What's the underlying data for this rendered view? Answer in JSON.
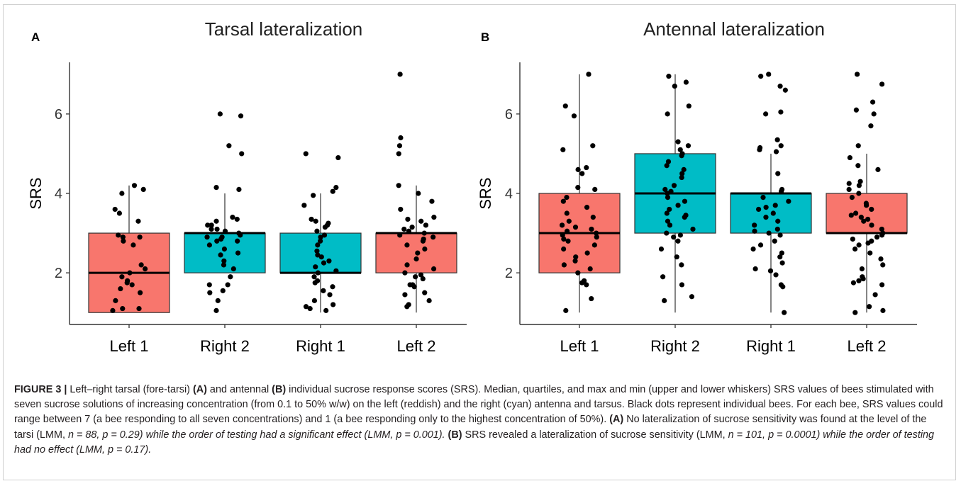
{
  "palette": {
    "left": "#f8766d",
    "right": "#00bcc6",
    "dot": "#000000",
    "axis": "#333333"
  },
  "chart_data": [
    {
      "panel": "A",
      "title": "Tarsal lateralization",
      "type": "box",
      "ylabel": "SRS",
      "ylim": [
        0.7,
        7.3
      ],
      "yticks": [
        2,
        4,
        6
      ],
      "categories": [
        "Left 1",
        "Right 2",
        "Right 1",
        "Left 2"
      ],
      "sides": [
        "left",
        "right",
        "right",
        "left"
      ],
      "boxes": [
        {
          "min": 1,
          "q1": 1,
          "median": 2,
          "q3": 3,
          "max": 4.2
        },
        {
          "min": 2,
          "q1": 2,
          "median": 3,
          "q3": 3,
          "max": 4
        },
        {
          "min": 1,
          "q1": 2,
          "median": 2,
          "q3": 3,
          "max": 4
        },
        {
          "min": 1,
          "q1": 2,
          "median": 3,
          "q3": 3,
          "max": 4.2
        }
      ],
      "points": [
        [
          4.2,
          4.1,
          4.0,
          3.6,
          3.5,
          3.3,
          2.95,
          2.9,
          2.9,
          2.8,
          2.7,
          2.2,
          2.1,
          2.0,
          1.9,
          1.8,
          1.75,
          1.7,
          1.6,
          1.5,
          1.3,
          1.1,
          1.05,
          1.1
        ],
        [
          6.0,
          5.95,
          5.2,
          5.0,
          4.15,
          4.1,
          3.4,
          3.35,
          3.3,
          3.2,
          3.2,
          3.1,
          3.1,
          3.05,
          3.0,
          2.95,
          2.9,
          2.9,
          2.85,
          2.8,
          2.8,
          2.7,
          2.6,
          2.5,
          2.45,
          2.3,
          2.2,
          2.1,
          1.9,
          1.7,
          1.7,
          1.55,
          1.5,
          1.3,
          1.05
        ],
        [
          5.0,
          4.9,
          4.15,
          4.05,
          3.95,
          3.7,
          3.35,
          3.3,
          3.25,
          3.2,
          3.15,
          3.05,
          2.95,
          2.9,
          2.8,
          2.7,
          2.55,
          2.45,
          2.4,
          2.3,
          2.25,
          2.15,
          2.05,
          2.0,
          1.9,
          1.8,
          1.75,
          1.65,
          1.55,
          1.45,
          1.3,
          1.2,
          1.15,
          1.1,
          1.05
        ],
        [
          7.0,
          5.4,
          5.2,
          5.0,
          4.2,
          4.0,
          3.8,
          3.6,
          3.4,
          3.35,
          3.3,
          3.2,
          3.15,
          3.1,
          3.05,
          3.0,
          2.95,
          2.9,
          2.85,
          2.8,
          2.7,
          2.6,
          2.5,
          2.35,
          2.2,
          2.1,
          2.0,
          1.95,
          1.9,
          1.85,
          1.7,
          1.7,
          1.65,
          1.5,
          1.45,
          1.3,
          1.2,
          1.15
        ]
      ]
    },
    {
      "panel": "B",
      "title": "Antennal lateralization",
      "type": "box",
      "ylabel": "SRS",
      "ylim": [
        0.7,
        7.3
      ],
      "yticks": [
        2,
        4,
        6
      ],
      "categories": [
        "Left 1",
        "Right 2",
        "Right 1",
        "Left 2"
      ],
      "sides": [
        "left",
        "right",
        "right",
        "left"
      ],
      "boxes": [
        {
          "min": 1,
          "q1": 2,
          "median": 3,
          "q3": 4,
          "max": 7
        },
        {
          "min": 1,
          "q1": 3,
          "median": 4,
          "q3": 5,
          "max": 7
        },
        {
          "min": 1,
          "q1": 3,
          "median": 4,
          "q3": 4,
          "max": 5
        },
        {
          "min": 1,
          "q1": 3,
          "median": 3,
          "q3": 4,
          "max": 5
        }
      ],
      "points": [
        [
          7.0,
          6.2,
          5.95,
          5.2,
          5.1,
          4.65,
          4.6,
          4.5,
          4.15,
          4.1,
          3.9,
          3.8,
          3.65,
          3.5,
          3.4,
          3.3,
          3.2,
          3.15,
          3.1,
          3.05,
          3.0,
          2.95,
          2.9,
          2.85,
          2.8,
          2.7,
          2.6,
          2.5,
          2.4,
          2.3,
          2.2,
          2.1,
          2.0,
          1.8,
          1.75,
          1.7,
          1.35,
          1.05
        ],
        [
          6.95,
          6.8,
          6.7,
          6.2,
          6.0,
          5.3,
          5.2,
          5.1,
          5.0,
          4.95,
          4.8,
          4.7,
          4.6,
          4.5,
          4.4,
          4.2,
          4.1,
          4.05,
          4.0,
          3.9,
          3.8,
          3.7,
          3.6,
          3.5,
          3.45,
          3.4,
          3.3,
          3.2,
          3.1,
          3.0,
          2.95,
          2.9,
          2.8,
          2.6,
          2.4,
          2.2,
          1.9,
          1.7,
          1.4,
          1.3
        ],
        [
          7.0,
          6.95,
          6.7,
          6.6,
          6.05,
          6.0,
          5.35,
          5.2,
          5.15,
          5.1,
          5.05,
          4.5,
          4.1,
          4.05,
          3.9,
          3.8,
          3.7,
          3.65,
          3.6,
          3.5,
          3.4,
          3.3,
          3.2,
          3.1,
          3.05,
          3.0,
          2.95,
          2.8,
          2.7,
          2.6,
          2.5,
          2.4,
          2.25,
          2.1,
          2.05,
          1.95,
          1.7,
          1.65,
          1.0
        ],
        [
          7.0,
          6.75,
          6.3,
          6.1,
          6.0,
          5.7,
          5.2,
          4.9,
          4.7,
          4.6,
          4.3,
          4.25,
          4.2,
          4.1,
          4.0,
          3.9,
          3.75,
          3.7,
          3.6,
          3.5,
          3.45,
          3.4,
          3.35,
          3.3,
          3.2,
          3.1,
          3.0,
          2.95,
          2.9,
          2.85,
          2.8,
          2.75,
          2.7,
          2.6,
          2.5,
          2.35,
          2.2,
          2.1,
          1.9,
          1.85,
          1.8,
          1.75,
          1.7,
          1.45,
          1.15,
          1.05,
          1.0
        ]
      ]
    }
  ],
  "caption": {
    "figure_label": "FIGURE 3 |",
    "text_1": " Left–right tarsal (fore-tarsi) ",
    "ref_a_1": "(A)",
    "text_2": " and antennal ",
    "ref_b_1": "(B)",
    "text_3": " individual sucrose response scores (SRS). Median, quartiles, and max and min (upper and lower whiskers) SRS values of bees stimulated with seven sucrose solutions of increasing concentration (from 0.1 to 50% w/w) on the left (reddish) and the right (cyan) antenna and tarsus. Black dots represent individual bees. For each bee, SRS values could range between 7 (a bee responding to all seven concentrations) and 1 (a bee responding only to the highest concentration of 50%). ",
    "ref_a_2": "(A)",
    "text_4": " No lateralization of sucrose sensitivity was found at the level of the tarsi (LMM, ",
    "n_a": "n = 88, ",
    "p_a1": "p = 0.29) while the order of testing had a significant effect (LMM, ",
    "p_a2": "p = 0.001). ",
    "ref_b_2": "(B)",
    "text_5": " SRS revealed a lateralization of sucrose sensitivity (LMM, ",
    "n_b": "n = 101, ",
    "p_b1": "p = 0.0001) while the order of testing had no effect (LMM, ",
    "p_b2": "p = 0.17)."
  }
}
